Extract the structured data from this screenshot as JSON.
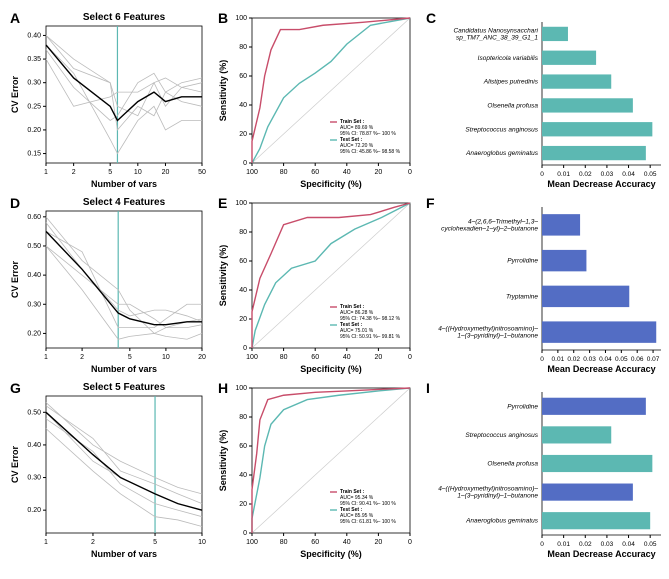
{
  "colors": {
    "teal": "#5cb8b2",
    "blue": "#536dc4",
    "grey_line": "#bbbbbb",
    "black_line": "#000000",
    "axis": "#000000",
    "bg": "#ffffff",
    "diag": "#cccccc"
  },
  "panels": {
    "A": {
      "label": "A",
      "title": "Select 6 Features",
      "xlabel": "Number of vars",
      "ylabel": "CV Error",
      "xlog": true,
      "xticks": [
        1,
        2,
        5,
        10,
        20,
        50
      ],
      "yticks": [
        0.15,
        0.2,
        0.25,
        0.3,
        0.35,
        0.4
      ],
      "ylim": [
        0.13,
        0.42
      ],
      "vline": 6,
      "grey_lines": [
        [
          [
            1,
            0.35
          ],
          [
            2,
            0.25
          ],
          [
            5,
            0.27
          ],
          [
            6,
            0.28
          ],
          [
            10,
            0.28
          ],
          [
            15,
            0.3
          ],
          [
            20,
            0.25
          ],
          [
            30,
            0.29
          ],
          [
            50,
            0.28
          ]
        ],
        [
          [
            1,
            0.4
          ],
          [
            2,
            0.33
          ],
          [
            5,
            0.3
          ],
          [
            6,
            0.25
          ],
          [
            10,
            0.23
          ],
          [
            15,
            0.3
          ],
          [
            20,
            0.31
          ],
          [
            30,
            0.29
          ],
          [
            50,
            0.3
          ]
        ],
        [
          [
            1,
            0.4
          ],
          [
            2,
            0.35
          ],
          [
            5,
            0.3
          ],
          [
            6,
            0.2
          ],
          [
            10,
            0.25
          ],
          [
            15,
            0.23
          ],
          [
            20,
            0.28
          ],
          [
            30,
            0.3
          ],
          [
            50,
            0.31
          ]
        ],
        [
          [
            1,
            0.38
          ],
          [
            2,
            0.32
          ],
          [
            5,
            0.18
          ],
          [
            6,
            0.15
          ],
          [
            10,
            0.22
          ],
          [
            15,
            0.25
          ],
          [
            20,
            0.2
          ],
          [
            30,
            0.22
          ],
          [
            50,
            0.22
          ]
        ],
        [
          [
            1,
            0.37
          ],
          [
            2,
            0.29
          ],
          [
            5,
            0.22
          ],
          [
            6,
            0.23
          ],
          [
            10,
            0.3
          ],
          [
            15,
            0.32
          ],
          [
            20,
            0.28
          ],
          [
            30,
            0.26
          ],
          [
            50,
            0.25
          ]
        ]
      ],
      "black_line": [
        [
          1,
          0.38
        ],
        [
          2,
          0.31
        ],
        [
          5,
          0.25
        ],
        [
          6,
          0.22
        ],
        [
          10,
          0.26
        ],
        [
          15,
          0.28
        ],
        [
          20,
          0.26
        ],
        [
          30,
          0.27
        ],
        [
          50,
          0.27
        ]
      ]
    },
    "B": {
      "label": "B",
      "xlabel": "Specificity (%)",
      "ylabel": "Sensitivity (%)",
      "ticks": [
        100,
        80,
        60,
        40,
        20,
        0
      ],
      "train_color": "#c84d6a",
      "test_color": "#5cb8b2",
      "train": [
        [
          100,
          0
        ],
        [
          100,
          15
        ],
        [
          95,
          38
        ],
        [
          92,
          60
        ],
        [
          88,
          78
        ],
        [
          82,
          92
        ],
        [
          70,
          92
        ],
        [
          55,
          95
        ],
        [
          30,
          97
        ],
        [
          0,
          100
        ]
      ],
      "test": [
        [
          100,
          0
        ],
        [
          95,
          10
        ],
        [
          90,
          25
        ],
        [
          80,
          45
        ],
        [
          70,
          55
        ],
        [
          60,
          62
        ],
        [
          50,
          70
        ],
        [
          40,
          82
        ],
        [
          25,
          95
        ],
        [
          0,
          100
        ]
      ],
      "legend": {
        "train": "Train Set :",
        "train_auc": "AUC= 89.69 %",
        "train_ci": "95% CI: 78.87 %– 100 %",
        "test": "Test Set :",
        "test_auc": "AUC= 72.20 %",
        "test_ci": "95% CI: 45.86 %– 98.58 %"
      }
    },
    "C": {
      "label": "C",
      "xlabel": "Mean Decrease Accuracy",
      "xticks": [
        0,
        0.01,
        0.02,
        0.03,
        0.04,
        0.05
      ],
      "xlim": [
        0,
        0.055
      ],
      "bar_color": "#5cb8b2",
      "bars": [
        {
          "name": "Candidatus Nanosynsacchari\nsp_TM7_ANC_38_39_G1_1",
          "value": 0.012
        },
        {
          "name": "Isoptericola variabilis",
          "value": 0.025
        },
        {
          "name": "Alistipes putredinis",
          "value": 0.032
        },
        {
          "name": "Olsenella profusa",
          "value": 0.042
        },
        {
          "name": "Streptococcus anginosus",
          "value": 0.051
        },
        {
          "name": "Anaeroglobus geminatus",
          "value": 0.048
        }
      ]
    },
    "D": {
      "label": "D",
      "title": "Select 4 Features",
      "xlabel": "Number of vars",
      "ylabel": "CV Error",
      "xlog": true,
      "xticks": [
        1,
        2,
        5,
        10,
        20
      ],
      "yticks": [
        0.2,
        0.3,
        0.4,
        0.5,
        0.6
      ],
      "ylim": [
        0.15,
        0.62
      ],
      "vline": 4,
      "grey_lines": [
        [
          [
            1,
            0.5
          ],
          [
            2,
            0.4
          ],
          [
            4,
            0.3
          ],
          [
            5,
            0.3
          ],
          [
            8,
            0.25
          ],
          [
            10,
            0.22
          ],
          [
            15,
            0.24
          ],
          [
            20,
            0.25
          ]
        ],
        [
          [
            1,
            0.6
          ],
          [
            2,
            0.45
          ],
          [
            4,
            0.35
          ],
          [
            5,
            0.28
          ],
          [
            8,
            0.2
          ],
          [
            10,
            0.22
          ],
          [
            15,
            0.22
          ],
          [
            20,
            0.23
          ]
        ],
        [
          [
            1,
            0.55
          ],
          [
            2,
            0.48
          ],
          [
            4,
            0.22
          ],
          [
            5,
            0.22
          ],
          [
            8,
            0.22
          ],
          [
            10,
            0.25
          ],
          [
            15,
            0.3
          ],
          [
            20,
            0.3
          ]
        ],
        [
          [
            1,
            0.5
          ],
          [
            2,
            0.35
          ],
          [
            4,
            0.18
          ],
          [
            5,
            0.19
          ],
          [
            8,
            0.2
          ],
          [
            10,
            0.19
          ],
          [
            15,
            0.18
          ],
          [
            20,
            0.2
          ]
        ],
        [
          [
            1,
            0.58
          ],
          [
            2,
            0.42
          ],
          [
            4,
            0.28
          ],
          [
            5,
            0.26
          ],
          [
            8,
            0.28
          ],
          [
            10,
            0.28
          ],
          [
            15,
            0.26
          ],
          [
            20,
            0.24
          ]
        ]
      ],
      "black_line": [
        [
          1,
          0.55
        ],
        [
          2,
          0.42
        ],
        [
          4,
          0.27
        ],
        [
          5,
          0.25
        ],
        [
          8,
          0.23
        ],
        [
          10,
          0.23
        ],
        [
          15,
          0.24
        ],
        [
          20,
          0.24
        ]
      ]
    },
    "E": {
      "label": "E",
      "xlabel": "Specificity (%)",
      "ylabel": "Sensitivity (%)",
      "ticks": [
        100,
        80,
        60,
        40,
        20,
        0
      ],
      "train_color": "#c84d6a",
      "test_color": "#5cb8b2",
      "train": [
        [
          100,
          0
        ],
        [
          100,
          25
        ],
        [
          95,
          48
        ],
        [
          88,
          65
        ],
        [
          80,
          85
        ],
        [
          65,
          90
        ],
        [
          45,
          90
        ],
        [
          25,
          92
        ],
        [
          10,
          97
        ],
        [
          0,
          100
        ]
      ],
      "test": [
        [
          100,
          0
        ],
        [
          98,
          12
        ],
        [
          92,
          30
        ],
        [
          85,
          45
        ],
        [
          75,
          55
        ],
        [
          60,
          60
        ],
        [
          50,
          72
        ],
        [
          35,
          82
        ],
        [
          18,
          90
        ],
        [
          0,
          100
        ]
      ],
      "legend": {
        "train": "Train Set :",
        "train_auc": "AUC= 86.28 %",
        "train_ci": "95% CI: 74.38 %– 98.12 %",
        "test": "Test Set :",
        "test_auc": "AUC= 75.01 %",
        "test_ci": "95% CI: 50.91 %– 99.81 %"
      }
    },
    "F": {
      "label": "F",
      "xlabel": "Mean Decrease Accuracy",
      "xticks": [
        0,
        0.01,
        0.02,
        0.03,
        0.04,
        0.05,
        0.06,
        0.07
      ],
      "xlim": [
        0,
        0.075
      ],
      "bar_color": "#536dc4",
      "bars": [
        {
          "name": "4–(2,6,6–Trimethyl–1,3–\ncyclohexadien–1–yl)–2–butanone",
          "value": 0.024
        },
        {
          "name": "Pyrrolidine",
          "value": 0.028
        },
        {
          "name": "Tryptamine",
          "value": 0.055
        },
        {
          "name": "4–((Hydroxymethyl)nitrosoamino)–\n1–(3–pyridinyl)–1–butanone",
          "value": 0.072
        }
      ]
    },
    "G": {
      "label": "G",
      "title": "Select 5 Features",
      "xlabel": "Number of vars",
      "ylabel": "CV Error",
      "xlog": true,
      "xticks": [
        1,
        2,
        5,
        10
      ],
      "yticks": [
        0.2,
        0.3,
        0.4,
        0.5
      ],
      "ylim": [
        0.13,
        0.55
      ],
      "vline": 5,
      "grey_lines": [
        [
          [
            1,
            0.5
          ],
          [
            2,
            0.35
          ],
          [
            3,
            0.3
          ],
          [
            5,
            0.25
          ],
          [
            7,
            0.22
          ],
          [
            10,
            0.2
          ]
        ],
        [
          [
            1,
            0.52
          ],
          [
            2,
            0.42
          ],
          [
            3,
            0.32
          ],
          [
            5,
            0.28
          ],
          [
            7,
            0.25
          ],
          [
            10,
            0.22
          ]
        ],
        [
          [
            1,
            0.48
          ],
          [
            2,
            0.38
          ],
          [
            3,
            0.28
          ],
          [
            5,
            0.22
          ],
          [
            7,
            0.2
          ],
          [
            10,
            0.18
          ]
        ],
        [
          [
            1,
            0.45
          ],
          [
            2,
            0.32
          ],
          [
            3,
            0.25
          ],
          [
            5,
            0.18
          ],
          [
            7,
            0.17
          ],
          [
            10,
            0.15
          ]
        ],
        [
          [
            1,
            0.53
          ],
          [
            2,
            0.4
          ],
          [
            3,
            0.35
          ],
          [
            5,
            0.3
          ],
          [
            7,
            0.27
          ],
          [
            10,
            0.25
          ]
        ]
      ],
      "black_line": [
        [
          1,
          0.5
        ],
        [
          2,
          0.37
        ],
        [
          3,
          0.3
        ],
        [
          5,
          0.25
        ],
        [
          7,
          0.22
        ],
        [
          10,
          0.2
        ]
      ]
    },
    "H": {
      "label": "H",
      "xlabel": "Specificity (%)",
      "ylabel": "Sensitivity (%)",
      "ticks": [
        100,
        80,
        60,
        40,
        20,
        0
      ],
      "train_color": "#c84d6a",
      "test_color": "#5cb8b2",
      "train": [
        [
          100,
          0
        ],
        [
          100,
          30
        ],
        [
          97,
          55
        ],
        [
          95,
          78
        ],
        [
          90,
          92
        ],
        [
          80,
          95
        ],
        [
          60,
          97
        ],
        [
          40,
          98
        ],
        [
          20,
          99
        ],
        [
          0,
          100
        ]
      ],
      "test": [
        [
          100,
          0
        ],
        [
          100,
          10
        ],
        [
          95,
          38
        ],
        [
          92,
          60
        ],
        [
          88,
          75
        ],
        [
          80,
          85
        ],
        [
          65,
          92
        ],
        [
          45,
          95
        ],
        [
          20,
          98
        ],
        [
          0,
          100
        ]
      ],
      "legend": {
        "train": "Train Set :",
        "train_auc": "AUC= 95.34 %",
        "train_ci": "95% CI: 90.41 %– 100 %",
        "test": "Test Set :",
        "test_auc": "AUC= 85.95 %",
        "test_ci": "95% CI: 61.81 %– 100 %"
      }
    },
    "I": {
      "label": "I",
      "xlabel": "Mean Decrease Accuracy",
      "xticks": [
        0,
        0.01,
        0.02,
        0.03,
        0.04,
        0.05
      ],
      "xlim": [
        0,
        0.055
      ],
      "bars": [
        {
          "name": "Pyrrolidine",
          "value": 0.048,
          "color": "#536dc4"
        },
        {
          "name": "Streptococcus anginosus",
          "value": 0.032,
          "color": "#5cb8b2"
        },
        {
          "name": "Olsenella profusa",
          "value": 0.051,
          "color": "#5cb8b2"
        },
        {
          "name": "4–((Hydroxymethyl)nitrosoamino)–\n1–(3–pyridinyl)–1–butanone",
          "value": 0.042,
          "color": "#536dc4"
        },
        {
          "name": "Anaeroglobus geminatus",
          "value": 0.05,
          "color": "#5cb8b2"
        }
      ]
    }
  }
}
